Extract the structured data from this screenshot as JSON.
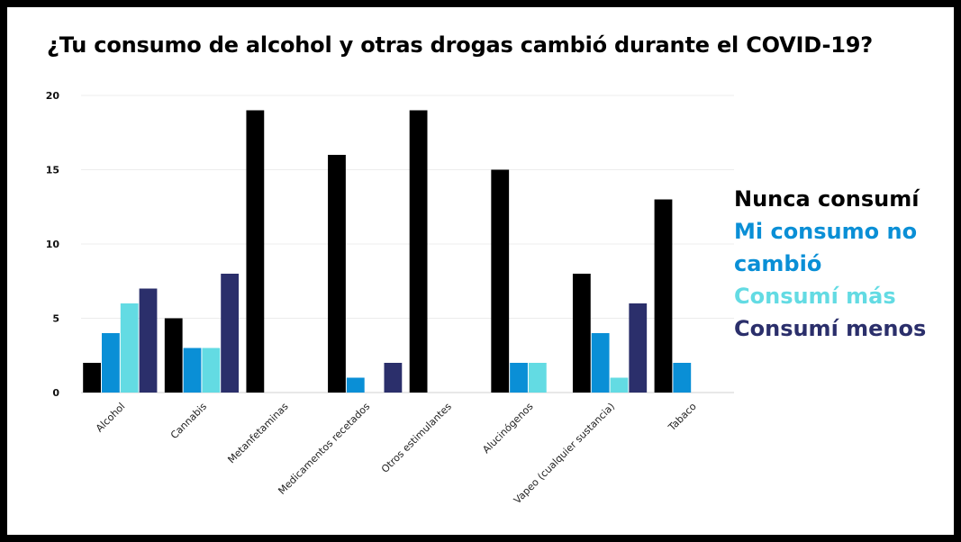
{
  "chart_data": {
    "type": "bar",
    "title": "¿Tu consumo de alcohol y otras drogas cambió durante el COVID-19?",
    "xlabel": "",
    "ylabel": "",
    "ylim": [
      0,
      20
    ],
    "yticks": [
      0,
      5,
      10,
      15,
      20
    ],
    "grid": true,
    "legend_position": "right",
    "categories": [
      "Alcohol",
      "Cannabis",
      "Metanfetaminas",
      "Medicamentos recetados",
      "Otros estimulantes",
      "Alucinógenos",
      "Vapeo (cualquier sustancia)",
      "Tabaco"
    ],
    "series": [
      {
        "name": "Nunca consumí",
        "color": "#000000",
        "values": [
          2,
          5,
          19,
          16,
          19,
          15,
          8,
          13
        ]
      },
      {
        "name": "Mi consumo no cambió",
        "color": "#0a8fd6",
        "values": [
          4,
          3,
          0,
          1,
          0,
          2,
          4,
          2
        ]
      },
      {
        "name": "Consumí más",
        "color": "#63dbe3",
        "values": [
          6,
          3,
          0,
          0,
          0,
          2,
          1,
          0
        ]
      },
      {
        "name": "Consumí menos",
        "color": "#2b2f6b",
        "values": [
          7,
          8,
          0,
          2,
          0,
          0,
          6,
          0
        ]
      }
    ]
  }
}
